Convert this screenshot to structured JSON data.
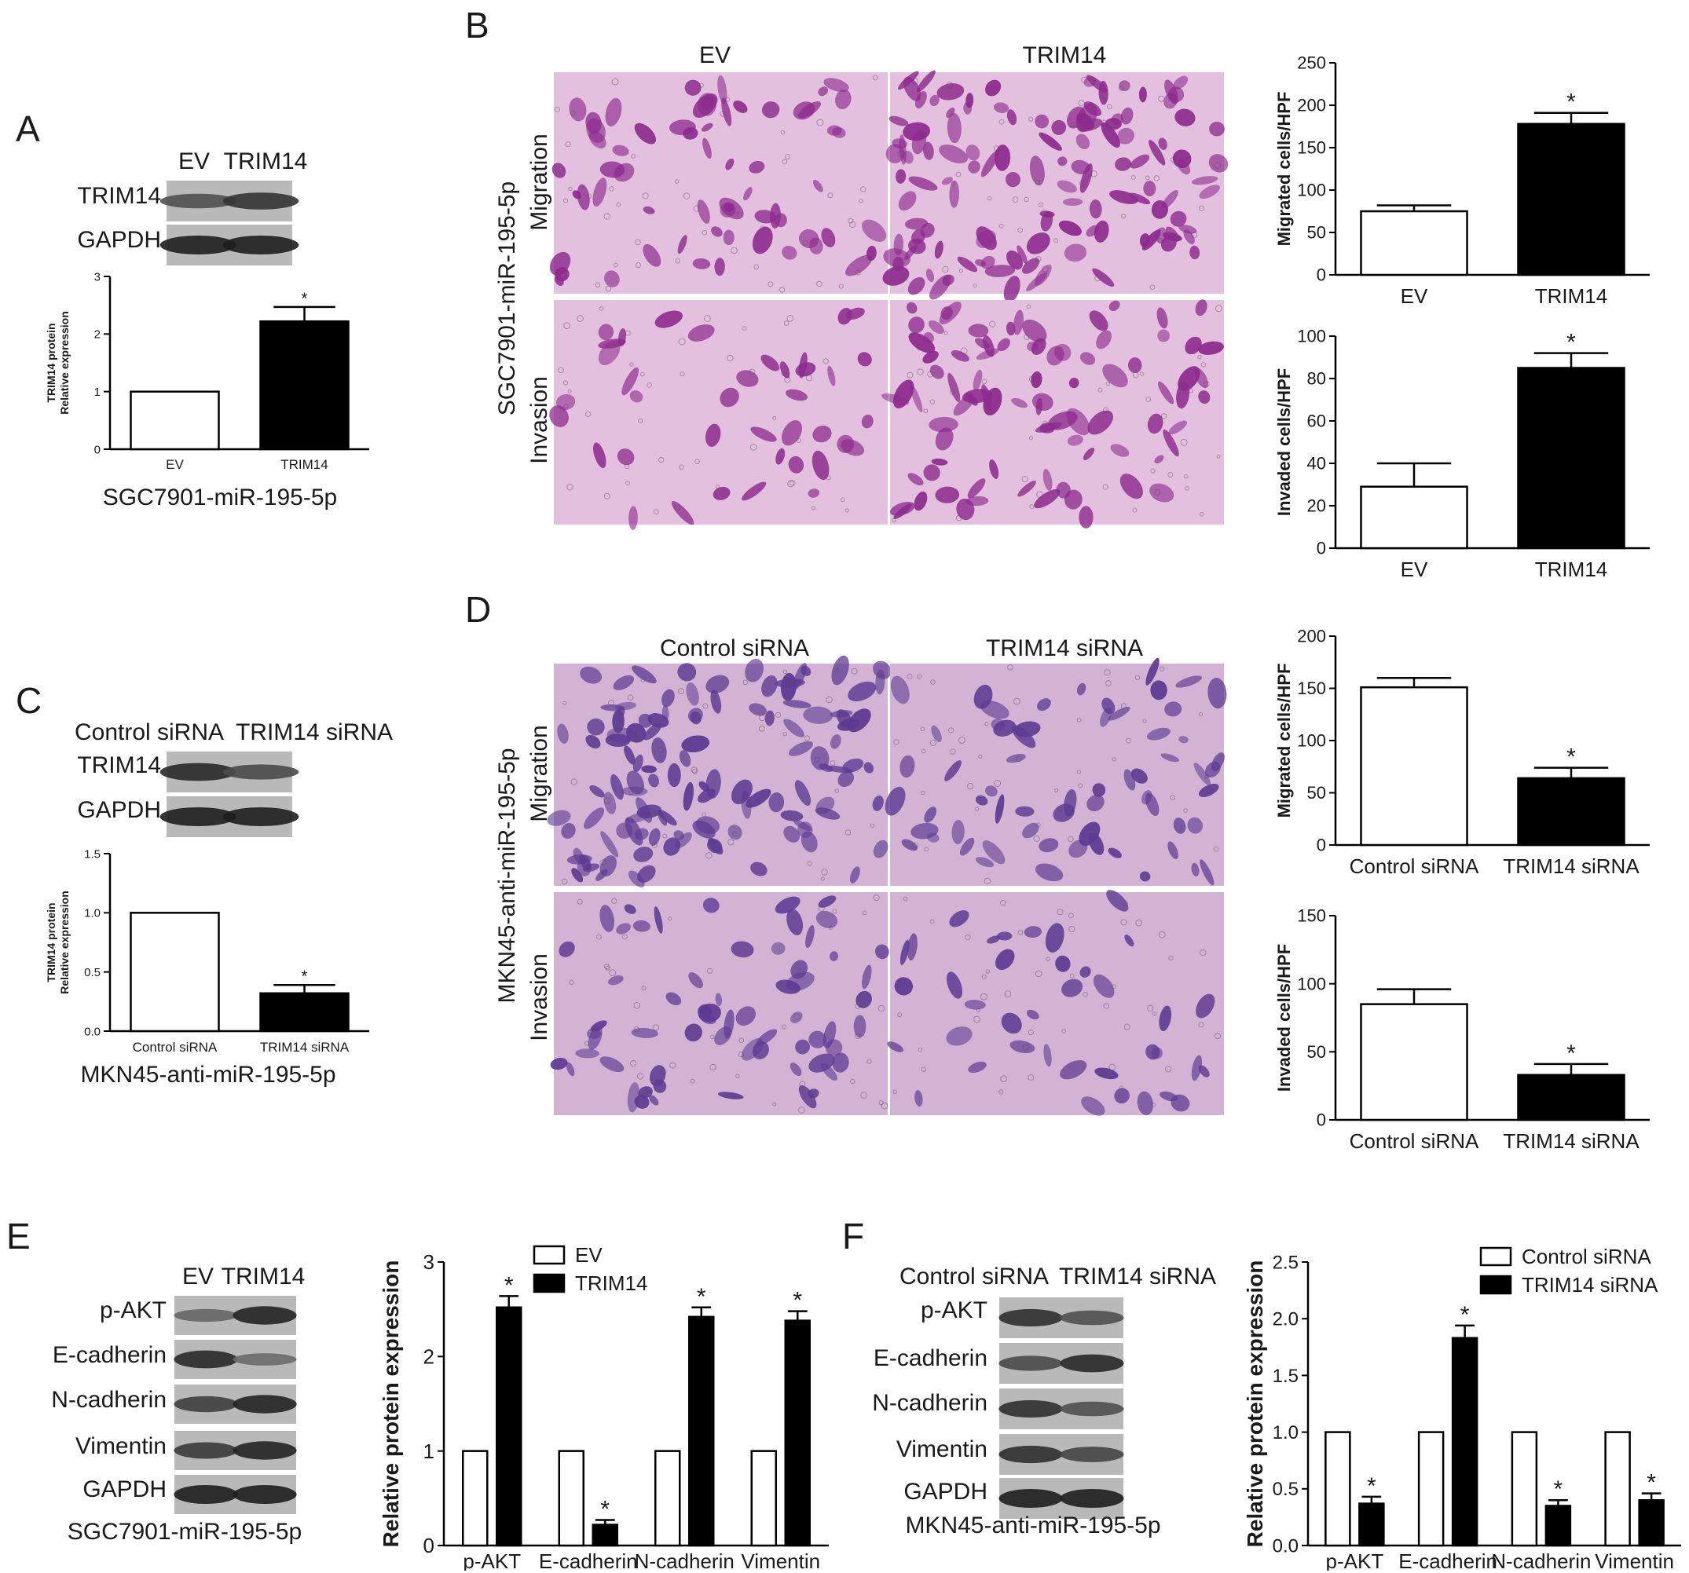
{
  "panels": {
    "A": {
      "letter": "A",
      "blot": {
        "lanes": [
          "EV",
          "TRIM14"
        ],
        "rows": [
          "TRIM14",
          "GAPDH"
        ],
        "band_intensity": [
          [
            0.55,
            0.8
          ],
          [
            1.0,
            1.0
          ]
        ]
      },
      "caption": "SGC7901-miR-195-5p"
    },
    "B": {
      "letter": "B",
      "cell_line_label": "SGC7901-miR-195-5p",
      "image_cols": [
        "EV",
        "TRIM14"
      ],
      "image_rows": [
        "Migration",
        "Invasion"
      ],
      "density": [
        [
          0.35,
          0.85
        ],
        [
          0.15,
          0.55
        ]
      ]
    },
    "C": {
      "letter": "C",
      "blot": {
        "lanes": [
          "Control siRNA",
          "TRIM14 siRNA"
        ],
        "rows": [
          "TRIM14",
          "GAPDH"
        ],
        "band_intensity": [
          [
            0.9,
            0.6
          ],
          [
            1.0,
            1.0
          ]
        ]
      },
      "caption": "MKN45-anti-miR-195-5p"
    },
    "D": {
      "letter": "D",
      "cell_line_label": "MKN45-anti-miR-195-5p",
      "image_cols": [
        "Control siRNA",
        "TRIM14 siRNA"
      ],
      "image_rows": [
        "Migration",
        "Invasion"
      ],
      "density": [
        [
          0.8,
          0.35
        ],
        [
          0.35,
          0.15
        ]
      ]
    },
    "E": {
      "letter": "E",
      "blot": {
        "lanes": [
          "EV",
          "TRIM14"
        ],
        "rows": [
          "p-AKT",
          "E-cadherin",
          "N-cadherin",
          "Vimentin",
          "GAPDH"
        ],
        "band_intensity": [
          [
            0.35,
            0.95
          ],
          [
            0.9,
            0.3
          ],
          [
            0.7,
            0.95
          ],
          [
            0.75,
            0.95
          ],
          [
            1.0,
            1.0
          ]
        ]
      },
      "caption": "SGC7901-miR-195-5p"
    },
    "F": {
      "letter": "F",
      "blot": {
        "lanes": [
          "Control siRNA",
          "TRIM14 siRNA"
        ],
        "rows": [
          "p-AKT",
          "E-cadherin",
          "N-cadherin",
          "Vimentin",
          "GAPDH"
        ],
        "band_intensity": [
          [
            0.85,
            0.55
          ],
          [
            0.6,
            0.9
          ],
          [
            0.85,
            0.55
          ],
          [
            0.85,
            0.65
          ],
          [
            1.0,
            1.0
          ]
        ]
      },
      "caption": "MKN45-anti-miR-195-5p"
    }
  },
  "chart_data": [
    {
      "id": "A-chart",
      "type": "bar",
      "categories": [
        "EV",
        "TRIM14"
      ],
      "values": [
        1.0,
        2.22
      ],
      "errors": [
        0,
        0.25
      ],
      "significance": [
        "",
        "*"
      ],
      "ylabel": [
        "TRIM14 protein",
        "Relative expression"
      ],
      "ylim": [
        0,
        3
      ],
      "ticks": [
        0,
        1,
        2,
        3
      ],
      "tick_labels": [
        "0",
        "1",
        "2",
        "3"
      ]
    },
    {
      "id": "B-migration",
      "type": "bar",
      "categories": [
        "EV",
        "TRIM14"
      ],
      "values": [
        75,
        178
      ],
      "errors": [
        7,
        13
      ],
      "significance": [
        "",
        "*"
      ],
      "ylabel": "Migrated cells/HPF",
      "ylim": [
        0,
        250
      ],
      "ticks": [
        0,
        50,
        100,
        150,
        200,
        250
      ],
      "tick_labels": [
        "0",
        "50",
        "100",
        "150",
        "200",
        "250"
      ]
    },
    {
      "id": "B-invasion",
      "type": "bar",
      "categories": [
        "EV",
        "TRIM14"
      ],
      "values": [
        29,
        85
      ],
      "errors": [
        11,
        7
      ],
      "significance": [
        "",
        "*"
      ],
      "ylabel": "Invaded cells/HPF",
      "ylim": [
        0,
        100
      ],
      "ticks": [
        0,
        20,
        40,
        60,
        80,
        100
      ],
      "tick_labels": [
        "0",
        "20",
        "40",
        "60",
        "80",
        "100"
      ]
    },
    {
      "id": "C-chart",
      "type": "bar",
      "categories": [
        "Control siRNA",
        "TRIM14 siRNA"
      ],
      "values": [
        1.0,
        0.32
      ],
      "errors": [
        0,
        0.07
      ],
      "significance": [
        "",
        "*"
      ],
      "ylabel": [
        "TRIM14 protein",
        "Relative expression"
      ],
      "ylim": [
        0,
        1.5
      ],
      "ticks": [
        0,
        0.5,
        1.0,
        1.5
      ],
      "tick_labels": [
        "0.0",
        "0.5",
        "1.0",
        "1.5"
      ]
    },
    {
      "id": "D-migration",
      "type": "bar",
      "categories": [
        "Control siRNA",
        "TRIM14 siRNA"
      ],
      "values": [
        151,
        64
      ],
      "errors": [
        9,
        10
      ],
      "significance": [
        "",
        "*"
      ],
      "ylabel": "Migrated cells/HPF",
      "ylim": [
        0,
        200
      ],
      "ticks": [
        0,
        50,
        100,
        150,
        200
      ],
      "tick_labels": [
        "0",
        "50",
        "100",
        "150",
        "200"
      ]
    },
    {
      "id": "D-invasion",
      "type": "bar",
      "categories": [
        "Control siRNA",
        "TRIM14 siRNA"
      ],
      "values": [
        85,
        33
      ],
      "errors": [
        11,
        8
      ],
      "significance": [
        "",
        "*"
      ],
      "ylabel": "Invaded cells/HPF",
      "ylim": [
        0,
        150
      ],
      "ticks": [
        0,
        50,
        100,
        150
      ],
      "tick_labels": [
        "0",
        "50",
        "100",
        "150"
      ]
    },
    {
      "id": "E-chart",
      "type": "bar",
      "categories": [
        "p-AKT",
        "E-cadherin",
        "N-cadherin",
        "Vimentin"
      ],
      "series": [
        {
          "name": "EV",
          "values": [
            1,
            1,
            1,
            1
          ],
          "errors": [
            0,
            0,
            0,
            0
          ],
          "significance": [
            "",
            "",
            "",
            ""
          ]
        },
        {
          "name": "TRIM14",
          "values": [
            2.52,
            0.22,
            2.42,
            2.38
          ],
          "errors": [
            0.12,
            0.05,
            0.1,
            0.1
          ],
          "significance": [
            "*",
            "*",
            "*",
            "*"
          ]
        }
      ],
      "ylabel": "Relative protein expression",
      "ylim": [
        0,
        3
      ],
      "ticks": [
        0,
        1,
        2,
        3
      ],
      "tick_labels": [
        "0",
        "1",
        "2",
        "3"
      ],
      "legend": "top-right"
    },
    {
      "id": "F-chart",
      "type": "bar",
      "categories": [
        "p-AKT",
        "E-cadherin",
        "N-cadherin",
        "Vimentin"
      ],
      "series": [
        {
          "name": "Control siRNA",
          "values": [
            1,
            1,
            1,
            1
          ],
          "errors": [
            0,
            0,
            0,
            0
          ],
          "significance": [
            "",
            "",
            "",
            ""
          ]
        },
        {
          "name": "TRIM14 siRNA",
          "values": [
            0.37,
            1.83,
            0.35,
            0.4
          ],
          "errors": [
            0.06,
            0.11,
            0.05,
            0.06
          ],
          "significance": [
            "*",
            "*",
            "*",
            "*"
          ]
        }
      ],
      "ylabel": "Relative protein expression",
      "ylim": [
        0,
        2.5
      ],
      "ticks": [
        0,
        0.5,
        1.0,
        1.5,
        2.0,
        2.5
      ],
      "tick_labels": [
        "0.0",
        "0.5",
        "1.0",
        "1.5",
        "2.0",
        "2.5"
      ],
      "legend": "top-right"
    }
  ]
}
